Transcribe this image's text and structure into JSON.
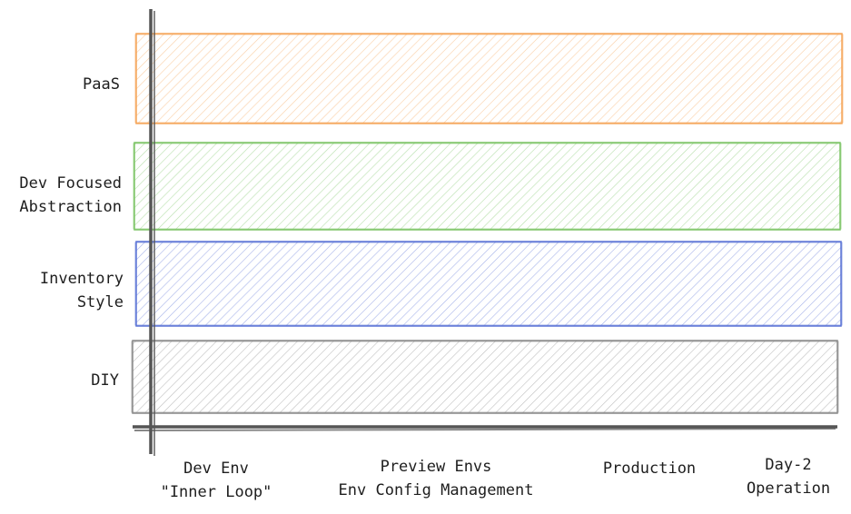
{
  "rows": [
    {
      "label_lines": [
        "PaaS"
      ],
      "stroke": "#f5a55a",
      "fill": "#fde3c4"
    },
    {
      "label_lines": [
        "Dev Focused",
        "Abstraction"
      ],
      "stroke": "#7cc465",
      "fill": "#d6efcf"
    },
    {
      "label_lines": [
        "Inventory",
        "Style"
      ],
      "stroke": "#5c74d6",
      "fill": "#d3dbf6"
    },
    {
      "label_lines": [
        "DIY"
      ],
      "stroke": "#8a8a8a",
      "fill": "#e3e3e3"
    }
  ],
  "columns": [
    {
      "label_lines": [
        "Dev Env",
        "\"Inner Loop\""
      ]
    },
    {
      "label_lines": [
        "Preview Envs",
        "Env Config Management"
      ]
    },
    {
      "label_lines": [
        "Production"
      ]
    },
    {
      "label_lines": [
        "Day-2",
        "Operation"
      ]
    }
  ],
  "axis_color": "#555555"
}
